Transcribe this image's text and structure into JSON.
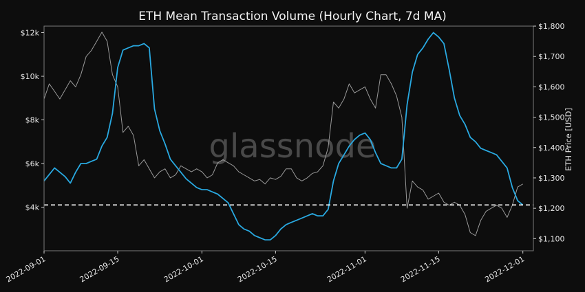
{
  "chart_data": {
    "type": "line",
    "title": "ETH Mean Transaction Volume (Hourly Chart, 7d MA)",
    "watermark": "glassnode",
    "ylabel_right": "ETH Price [USD]",
    "x_ticks": [
      "2022-09-01",
      "2022-09-15",
      "2022-10-01",
      "2022-10-15",
      "2022-11-01",
      "2022-11-15",
      "2022-12-01"
    ],
    "x_range": [
      "2022-09-01",
      "2022-12-03"
    ],
    "left_axis": {
      "range": [
        2000,
        12300
      ],
      "ticks": [
        4000,
        6000,
        8000,
        10000,
        12000
      ],
      "tick_labels": [
        "$4k",
        "$6k",
        "$8k",
        "$10k",
        "$12k"
      ]
    },
    "right_axis": {
      "range": [
        1060,
        1800
      ],
      "ticks": [
        1100,
        1200,
        1300,
        1400,
        1500,
        1600,
        1700,
        1800
      ],
      "tick_labels": [
        "$1,100",
        "$1,200",
        "$1,300",
        "$1,400",
        "$1,500",
        "$1,600",
        "$1,700",
        "$1,800"
      ]
    },
    "reference_line": {
      "value": 4100,
      "axis": "left",
      "style": "dashed",
      "color": "#ffffff"
    },
    "grid": false,
    "colors": {
      "background": "#0d0d0d",
      "volume": "#29a9e1",
      "price": "#9a9a9a"
    },
    "series": [
      {
        "axis": "left",
        "color": "#29a9e1",
        "points": [
          [
            "2022-09-01",
            5200
          ],
          [
            "2022-09-02",
            5500
          ],
          [
            "2022-09-03",
            5800
          ],
          [
            "2022-09-04",
            5600
          ],
          [
            "2022-09-05",
            5400
          ],
          [
            "2022-09-06",
            5100
          ],
          [
            "2022-09-07",
            5600
          ],
          [
            "2022-09-08",
            6000
          ],
          [
            "2022-09-09",
            6000
          ],
          [
            "2022-09-10",
            6100
          ],
          [
            "2022-09-11",
            6200
          ],
          [
            "2022-09-12",
            6800
          ],
          [
            "2022-09-13",
            7200
          ],
          [
            "2022-09-14",
            8300
          ],
          [
            "2022-09-15",
            10400
          ],
          [
            "2022-09-16",
            11200
          ],
          [
            "2022-09-17",
            11300
          ],
          [
            "2022-09-18",
            11400
          ],
          [
            "2022-09-19",
            11400
          ],
          [
            "2022-09-20",
            11500
          ],
          [
            "2022-09-21",
            11300
          ],
          [
            "2022-09-22",
            8500
          ],
          [
            "2022-09-23",
            7500
          ],
          [
            "2022-09-24",
            6900
          ],
          [
            "2022-09-25",
            6200
          ],
          [
            "2022-09-26",
            5900
          ],
          [
            "2022-09-27",
            5600
          ],
          [
            "2022-09-28",
            5300
          ],
          [
            "2022-09-29",
            5100
          ],
          [
            "2022-09-30",
            4900
          ],
          [
            "2022-10-01",
            4800
          ],
          [
            "2022-10-02",
            4800
          ],
          [
            "2022-10-03",
            4700
          ],
          [
            "2022-10-04",
            4600
          ],
          [
            "2022-10-05",
            4400
          ],
          [
            "2022-10-06",
            4200
          ],
          [
            "2022-10-07",
            3700
          ],
          [
            "2022-10-08",
            3200
          ],
          [
            "2022-10-09",
            3000
          ],
          [
            "2022-10-10",
            2900
          ],
          [
            "2022-10-11",
            2700
          ],
          [
            "2022-10-12",
            2600
          ],
          [
            "2022-10-13",
            2500
          ],
          [
            "2022-10-14",
            2500
          ],
          [
            "2022-10-15",
            2700
          ],
          [
            "2022-10-16",
            3000
          ],
          [
            "2022-10-17",
            3200
          ],
          [
            "2022-10-18",
            3300
          ],
          [
            "2022-10-19",
            3400
          ],
          [
            "2022-10-20",
            3500
          ],
          [
            "2022-10-21",
            3600
          ],
          [
            "2022-10-22",
            3700
          ],
          [
            "2022-10-23",
            3600
          ],
          [
            "2022-10-24",
            3600
          ],
          [
            "2022-10-25",
            3900
          ],
          [
            "2022-10-26",
            5200
          ],
          [
            "2022-10-27",
            6000
          ],
          [
            "2022-10-28",
            6400
          ],
          [
            "2022-10-29",
            6800
          ],
          [
            "2022-10-30",
            7100
          ],
          [
            "2022-10-31",
            7300
          ],
          [
            "2022-11-01",
            7400
          ],
          [
            "2022-11-02",
            7100
          ],
          [
            "2022-11-03",
            6500
          ],
          [
            "2022-11-04",
            6000
          ],
          [
            "2022-11-05",
            5900
          ],
          [
            "2022-11-06",
            5800
          ],
          [
            "2022-11-07",
            5800
          ],
          [
            "2022-11-08",
            6200
          ],
          [
            "2022-11-09",
            8700
          ],
          [
            "2022-11-10",
            10200
          ],
          [
            "2022-11-11",
            11000
          ],
          [
            "2022-11-12",
            11300
          ],
          [
            "2022-11-13",
            11700
          ],
          [
            "2022-11-14",
            12000
          ],
          [
            "2022-11-15",
            11800
          ],
          [
            "2022-11-16",
            11500
          ],
          [
            "2022-11-17",
            10300
          ],
          [
            "2022-11-18",
            9000
          ],
          [
            "2022-11-19",
            8200
          ],
          [
            "2022-11-20",
            7800
          ],
          [
            "2022-11-21",
            7200
          ],
          [
            "2022-11-22",
            7000
          ],
          [
            "2022-11-23",
            6700
          ],
          [
            "2022-11-24",
            6600
          ],
          [
            "2022-11-25",
            6500
          ],
          [
            "2022-11-26",
            6400
          ],
          [
            "2022-11-27",
            6100
          ],
          [
            "2022-11-28",
            5800
          ],
          [
            "2022-11-29",
            4900
          ],
          [
            "2022-11-30",
            4300
          ],
          [
            "2022-12-01",
            4100
          ]
        ]
      },
      {
        "axis": "right",
        "color": "#9a9a9a",
        "points": [
          [
            "2022-09-01",
            1560
          ],
          [
            "2022-09-02",
            1610
          ],
          [
            "2022-09-03",
            1585
          ],
          [
            "2022-09-04",
            1560
          ],
          [
            "2022-09-05",
            1590
          ],
          [
            "2022-09-06",
            1620
          ],
          [
            "2022-09-07",
            1600
          ],
          [
            "2022-09-08",
            1640
          ],
          [
            "2022-09-09",
            1700
          ],
          [
            "2022-09-10",
            1720
          ],
          [
            "2022-09-11",
            1750
          ],
          [
            "2022-09-12",
            1780
          ],
          [
            "2022-09-13",
            1750
          ],
          [
            "2022-09-14",
            1640
          ],
          [
            "2022-09-15",
            1600
          ],
          [
            "2022-09-16",
            1450
          ],
          [
            "2022-09-17",
            1470
          ],
          [
            "2022-09-18",
            1440
          ],
          [
            "2022-09-19",
            1340
          ],
          [
            "2022-09-20",
            1360
          ],
          [
            "2022-09-21",
            1330
          ],
          [
            "2022-09-22",
            1300
          ],
          [
            "2022-09-23",
            1320
          ],
          [
            "2022-09-24",
            1330
          ],
          [
            "2022-09-25",
            1300
          ],
          [
            "2022-09-26",
            1310
          ],
          [
            "2022-09-27",
            1340
          ],
          [
            "2022-09-28",
            1330
          ],
          [
            "2022-09-29",
            1320
          ],
          [
            "2022-09-30",
            1330
          ],
          [
            "2022-10-01",
            1320
          ],
          [
            "2022-10-02",
            1300
          ],
          [
            "2022-10-03",
            1310
          ],
          [
            "2022-10-04",
            1350
          ],
          [
            "2022-10-05",
            1360
          ],
          [
            "2022-10-06",
            1350
          ],
          [
            "2022-10-07",
            1340
          ],
          [
            "2022-10-08",
            1320
          ],
          [
            "2022-10-09",
            1310
          ],
          [
            "2022-10-10",
            1300
          ],
          [
            "2022-10-11",
            1290
          ],
          [
            "2022-10-12",
            1295
          ],
          [
            "2022-10-13",
            1280
          ],
          [
            "2022-10-14",
            1300
          ],
          [
            "2022-10-15",
            1295
          ],
          [
            "2022-10-16",
            1305
          ],
          [
            "2022-10-17",
            1330
          ],
          [
            "2022-10-18",
            1330
          ],
          [
            "2022-10-19",
            1300
          ],
          [
            "2022-10-20",
            1290
          ],
          [
            "2022-10-21",
            1300
          ],
          [
            "2022-10-22",
            1315
          ],
          [
            "2022-10-23",
            1320
          ],
          [
            "2022-10-24",
            1340
          ],
          [
            "2022-10-25",
            1400
          ],
          [
            "2022-10-26",
            1550
          ],
          [
            "2022-10-27",
            1530
          ],
          [
            "2022-10-28",
            1560
          ],
          [
            "2022-10-29",
            1610
          ],
          [
            "2022-10-30",
            1580
          ],
          [
            "2022-10-31",
            1590
          ],
          [
            "2022-11-01",
            1600
          ],
          [
            "2022-11-02",
            1560
          ],
          [
            "2022-11-03",
            1530
          ],
          [
            "2022-11-04",
            1640
          ],
          [
            "2022-11-05",
            1640
          ],
          [
            "2022-11-06",
            1610
          ],
          [
            "2022-11-07",
            1570
          ],
          [
            "2022-11-08",
            1500
          ],
          [
            "2022-11-09",
            1200
          ],
          [
            "2022-11-10",
            1290
          ],
          [
            "2022-11-11",
            1270
          ],
          [
            "2022-11-12",
            1260
          ],
          [
            "2022-11-13",
            1230
          ],
          [
            "2022-11-14",
            1240
          ],
          [
            "2022-11-15",
            1250
          ],
          [
            "2022-11-16",
            1220
          ],
          [
            "2022-11-17",
            1210
          ],
          [
            "2022-11-18",
            1220
          ],
          [
            "2022-11-19",
            1210
          ],
          [
            "2022-11-20",
            1180
          ],
          [
            "2022-11-21",
            1120
          ],
          [
            "2022-11-22",
            1110
          ],
          [
            "2022-11-23",
            1160
          ],
          [
            "2022-11-24",
            1190
          ],
          [
            "2022-11-25",
            1200
          ],
          [
            "2022-11-26",
            1210
          ],
          [
            "2022-11-27",
            1200
          ],
          [
            "2022-11-28",
            1170
          ],
          [
            "2022-11-29",
            1210
          ],
          [
            "2022-11-30",
            1270
          ],
          [
            "2022-12-01",
            1280
          ]
        ]
      }
    ]
  }
}
